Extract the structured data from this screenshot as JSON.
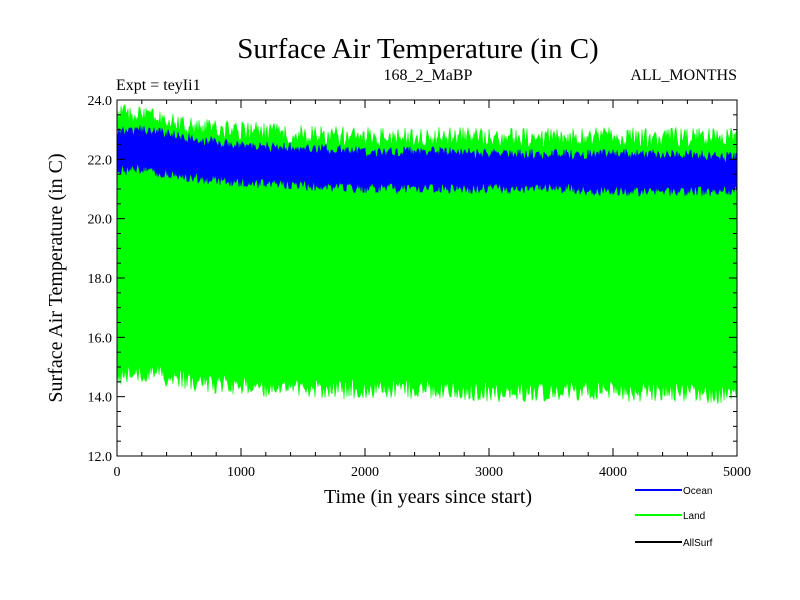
{
  "chart_data": {
    "type": "area",
    "title": "Surface Air Temperature (in C)",
    "subtitle_left": "Expt = teyIi1",
    "subtitle_center": "168_2_MaBP",
    "subtitle_right": "ALL_MONTHS",
    "xlabel": "Time (in years since start)",
    "ylabel": "Surface Air Temperature (in C)",
    "xlim": [
      0,
      5000
    ],
    "ylim": [
      12.0,
      24.0
    ],
    "x_ticks": [
      0,
      1000,
      2000,
      3000,
      4000,
      5000
    ],
    "x_tick_labels": [
      "0",
      "1000",
      "2000",
      "3000",
      "4000",
      "5000"
    ],
    "y_ticks": [
      12.0,
      14.0,
      16.0,
      18.0,
      20.0,
      22.0,
      24.0
    ],
    "y_tick_labels": [
      "12.0",
      "14.0",
      "16.0",
      "18.0",
      "20.0",
      "22.0",
      "24.0"
    ],
    "series": [
      {
        "name": "Land",
        "color": "#00ff00",
        "envelope_x": [
          0,
          250,
          500,
          1000,
          1500,
          2000,
          2500,
          3000,
          3500,
          4000,
          4500,
          5000
        ],
        "upper": [
          23.6,
          23.5,
          23.2,
          23.0,
          22.9,
          22.8,
          22.8,
          22.8,
          22.8,
          22.8,
          22.8,
          22.8
        ],
        "lower": [
          14.6,
          14.8,
          14.5,
          14.3,
          14.2,
          14.2,
          14.2,
          14.1,
          14.1,
          14.1,
          14.1,
          14.0
        ]
      },
      {
        "name": "Ocean",
        "color": "#0000ff",
        "envelope_x": [
          0,
          250,
          500,
          1000,
          1500,
          2000,
          2500,
          3000,
          3500,
          4000,
          4500,
          5000
        ],
        "upper": [
          23.0,
          23.0,
          22.8,
          22.5,
          22.4,
          22.3,
          22.3,
          22.2,
          22.2,
          22.2,
          22.2,
          22.1
        ],
        "lower": [
          21.6,
          21.6,
          21.4,
          21.2,
          21.1,
          21.0,
          21.0,
          21.0,
          21.0,
          20.9,
          20.9,
          20.9
        ]
      },
      {
        "name": "AllSurf",
        "color": "#000000",
        "envelope_x": [],
        "upper": [],
        "lower": []
      }
    ],
    "legend": [
      "Ocean",
      "Land",
      "AllSurf"
    ]
  }
}
